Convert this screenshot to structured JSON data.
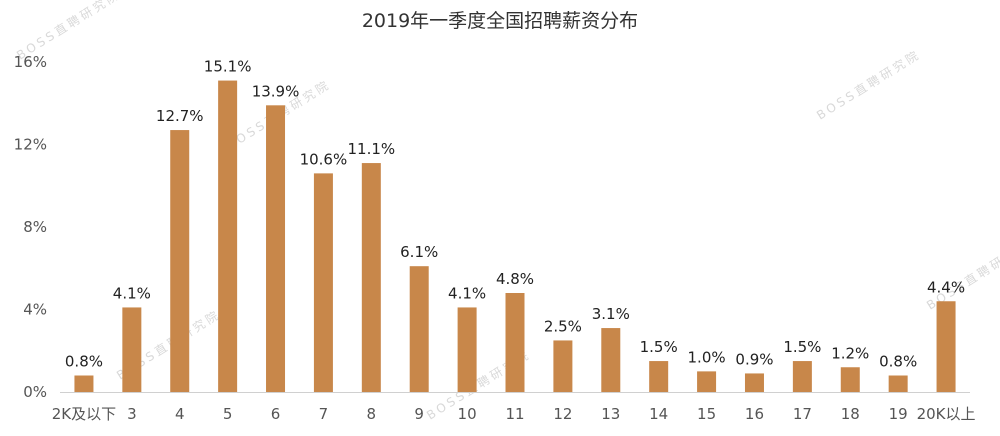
{
  "chart_data": {
    "type": "bar",
    "title": "2019年一季度全国招聘薪资分布",
    "categories": [
      "2K及以下",
      "3",
      "4",
      "5",
      "6",
      "7",
      "8",
      "9",
      "10",
      "11",
      "12",
      "13",
      "14",
      "15",
      "16",
      "17",
      "18",
      "19",
      "20K以上"
    ],
    "values": [
      0.8,
      4.1,
      12.7,
      15.1,
      13.9,
      10.6,
      11.1,
      6.1,
      4.1,
      4.8,
      2.5,
      3.1,
      1.5,
      1.0,
      0.9,
      1.5,
      1.2,
      0.8,
      4.4
    ],
    "data_labels": [
      "0.8%",
      "4.1%",
      "12.7%",
      "15.1%",
      "13.9%",
      "10.6%",
      "11.1%",
      "6.1%",
      "4.1%",
      "4.8%",
      "2.5%",
      "3.1%",
      "1.5%",
      "1.0%",
      "0.9%",
      "1.5%",
      "1.2%",
      "0.8%",
      "4.4%"
    ],
    "yticks": [
      0,
      4,
      8,
      12,
      16
    ],
    "ytick_labels": [
      "0%",
      "4%",
      "8%",
      "12%",
      "16%"
    ],
    "ylim": [
      0,
      16
    ],
    "grid": false,
    "bar_color": "#C8874A",
    "xlabel": "",
    "ylabel": ""
  },
  "watermark": "BOSS直聘研究院"
}
